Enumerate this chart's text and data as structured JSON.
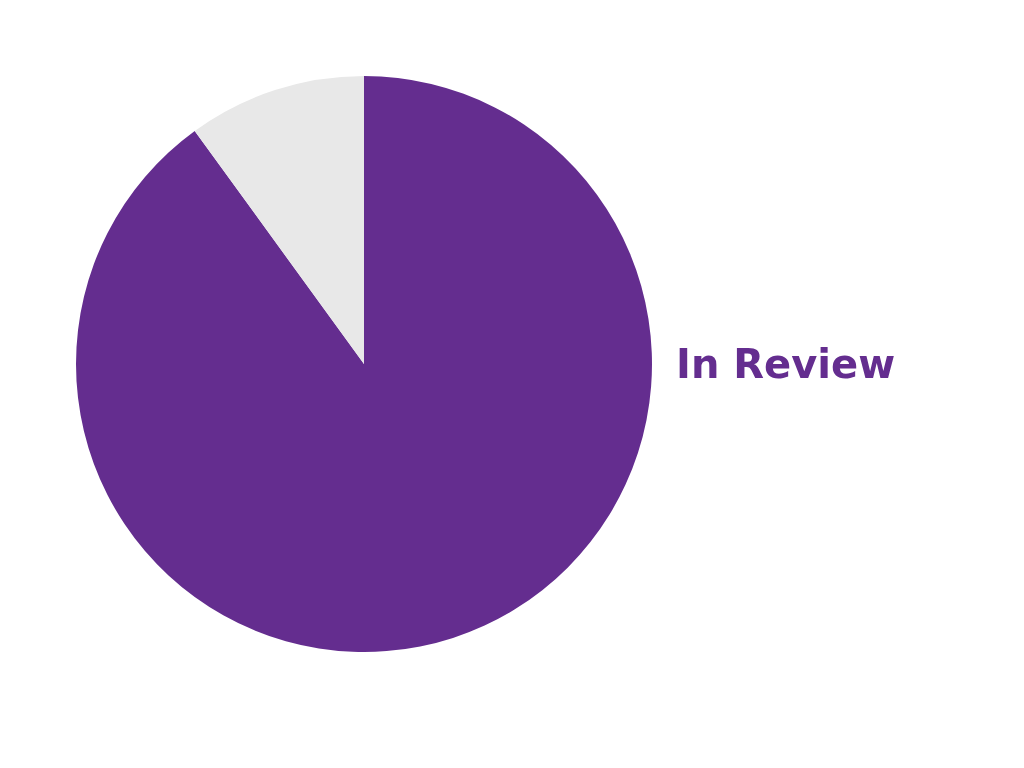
{
  "chart_data": {
    "type": "pie",
    "categories": [
      "In Review",
      null
    ],
    "values": [
      90,
      10
    ],
    "colors": [
      "#642d8f",
      "#e8e8e8"
    ]
  }
}
